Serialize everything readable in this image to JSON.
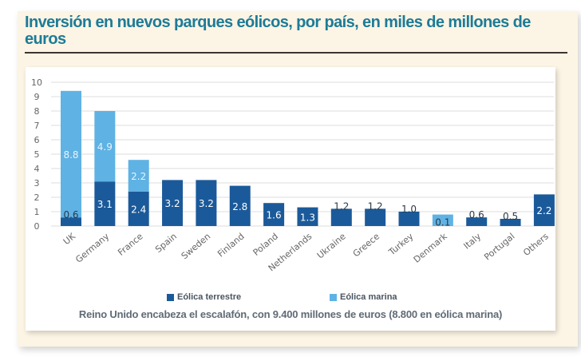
{
  "title": "Inversión en nuevos parques eólicos, por país, en miles de millones de euros",
  "caption": "Reino Unido encabeza el escalafón, con 9.400 millones de euros (8.800 en eólica marina)",
  "colors": {
    "terrestre": "#1b5a9a",
    "marina": "#5fb2e4",
    "grid": "#dcdcdc",
    "axis_text": "#666666",
    "title": "#1d7b97"
  },
  "legend": [
    {
      "label": "Eólica terrestre",
      "color": "#1b5a9a"
    },
    {
      "label": "Eólica marina",
      "color": "#5fb2e4"
    }
  ],
  "chart_data": {
    "type": "bar",
    "stacked": true,
    "title": "Inversión en nuevos parques eólicos, por país, en miles de millones de euros",
    "xlabel": "",
    "ylabel": "",
    "ylim": [
      0,
      10
    ],
    "yticks": [
      "0",
      "1",
      "2",
      "3",
      "4",
      "5",
      "6",
      "7",
      "8",
      "9",
      "10"
    ],
    "grid": true,
    "legend_position": "bottom",
    "categories": [
      "UK",
      "Germany",
      "France",
      "Spain",
      "Sweden",
      "Finland",
      "Poland",
      "Netherlands",
      "Ukraine",
      "Greece",
      "Turkey",
      "Denmark",
      "Italy",
      "Portugal",
      "Others"
    ],
    "series": [
      {
        "name": "Eólica terrestre",
        "values": [
          0.6,
          3.1,
          2.4,
          3.2,
          3.2,
          2.8,
          1.6,
          1.3,
          1.2,
          1.2,
          1.0,
          0.1,
          0.6,
          0.5,
          2.2
        ],
        "labels": [
          "0.6",
          "3.1",
          "2.4",
          "3.2",
          "3.2",
          "2.8",
          "1.6",
          "1.3",
          "1.2",
          "1.2",
          "1.0",
          "0.1",
          "0.6",
          "0.5",
          "2.2"
        ]
      },
      {
        "name": "Eólica marina",
        "values": [
          8.8,
          4.9,
          2.2,
          0,
          0,
          0,
          0,
          0,
          0,
          0,
          0,
          0.7,
          0,
          0,
          0
        ],
        "labels": [
          "8.8",
          "4.9",
          "2.2",
          "",
          "",
          "",
          "",
          "",
          "",
          "",
          "",
          "",
          "",
          "",
          ""
        ]
      }
    ]
  }
}
